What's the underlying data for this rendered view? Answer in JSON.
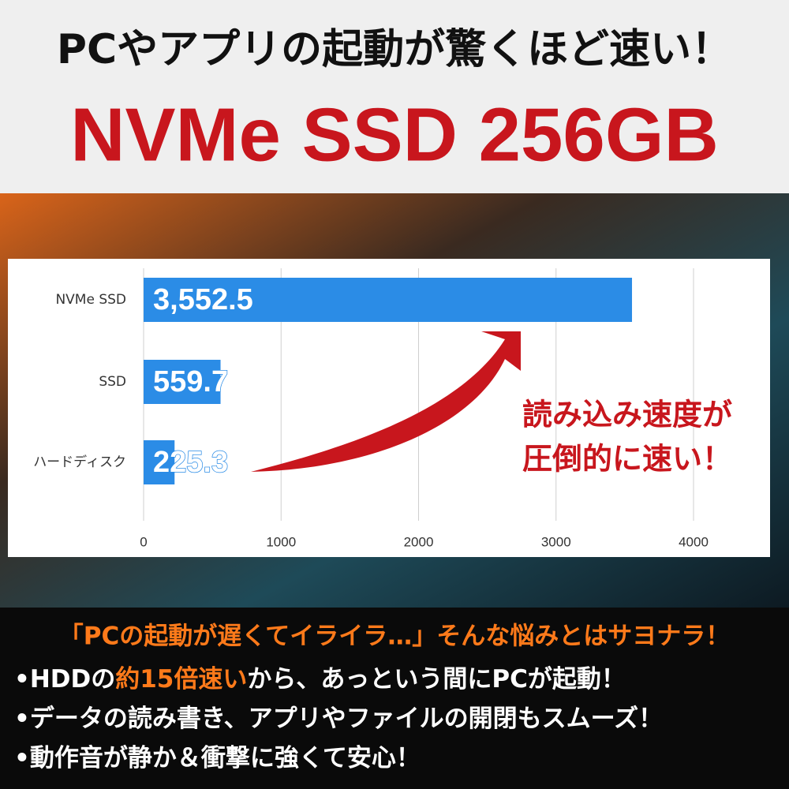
{
  "header": {
    "line1": "PCやアプリの起動が驚くほど速い！",
    "line2": "NVMe SSD 256GB"
  },
  "chart_data": {
    "type": "bar",
    "orientation": "horizontal",
    "categories": [
      "NVMe SSD",
      "SSD",
      "ハードディスク"
    ],
    "values": [
      3552.5,
      559.7,
      225.3
    ],
    "value_labels": [
      "3,552.5",
      "559.7",
      "225.3"
    ],
    "color": "#2b8ce6",
    "xlim": [
      0,
      4000
    ],
    "xticks": [
      0,
      1000,
      2000,
      3000,
      4000
    ],
    "grid": true,
    "annotation": [
      "読み込み速度が",
      "圧倒的に速い！"
    ]
  },
  "footer": {
    "headline": "「PCの起動が遅くてイライラ…」そんな悩みとはサヨナラ！",
    "bullets": [
      [
        {
          "text": "•HDDの"
        },
        {
          "text": "約15倍速い",
          "highlight": true
        },
        {
          "text": "から、あっという間にPCが起動！"
        }
      ],
      [
        {
          "text": "•データの読み書き、アプリやファイルの開閉もスムーズ！"
        }
      ],
      [
        {
          "text": "•動作音が静か＆衝撃に強くて安心！"
        }
      ]
    ]
  }
}
